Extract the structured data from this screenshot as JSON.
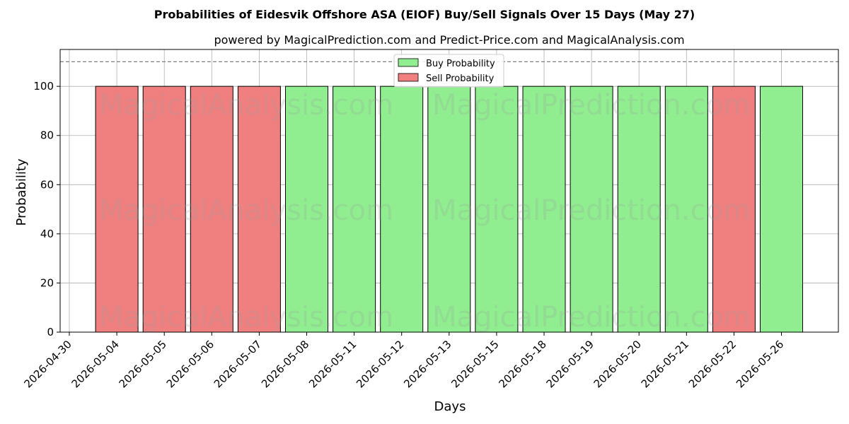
{
  "chart_data": {
    "type": "bar",
    "title": "Probabilities of Eidesvik Offshore ASA (EIOF) Buy/Sell Signals Over 15 Days (May 27)",
    "subtitle": "powered by MagicalPrediction.com and Predict-Price.com and MagicalAnalysis.com",
    "xlabel": "Days",
    "ylabel": "Probability",
    "ylim": [
      0,
      115
    ],
    "yticks": [
      0,
      20,
      40,
      60,
      80,
      100
    ],
    "reference_line": 110,
    "grid": true,
    "legend_position": "top-center",
    "x_tick_labels": [
      "2026-04-30",
      "2026-05-04",
      "2026-05-05",
      "2026-05-06",
      "2026-05-07",
      "2026-05-08",
      "2026-05-11",
      "2026-05-12",
      "2026-05-13",
      "2026-05-15",
      "2026-05-18",
      "2026-05-19",
      "2026-05-20",
      "2026-05-21",
      "2026-05-22",
      "2026-05-26"
    ],
    "bars": [
      {
        "date": "2026-05-04",
        "value": 100,
        "signal": "sell"
      },
      {
        "date": "2026-05-05",
        "value": 100,
        "signal": "sell"
      },
      {
        "date": "2026-05-06",
        "value": 100,
        "signal": "sell"
      },
      {
        "date": "2026-05-07",
        "value": 100,
        "signal": "sell"
      },
      {
        "date": "2026-05-08",
        "value": 100,
        "signal": "buy"
      },
      {
        "date": "2026-05-11",
        "value": 100,
        "signal": "buy"
      },
      {
        "date": "2026-05-12",
        "value": 100,
        "signal": "buy"
      },
      {
        "date": "2026-05-13",
        "value": 100,
        "signal": "buy"
      },
      {
        "date": "2026-05-15",
        "value": 100,
        "signal": "buy"
      },
      {
        "date": "2026-05-18",
        "value": 100,
        "signal": "buy"
      },
      {
        "date": "2026-05-19",
        "value": 100,
        "signal": "buy"
      },
      {
        "date": "2026-05-20",
        "value": 100,
        "signal": "buy"
      },
      {
        "date": "2026-05-21",
        "value": 100,
        "signal": "buy"
      },
      {
        "date": "2026-05-22",
        "value": 100,
        "signal": "sell"
      },
      {
        "date": "2026-05-26",
        "value": 100,
        "signal": "buy"
      }
    ],
    "series": [
      {
        "name": "Buy Probability",
        "key": "buy",
        "color": "#90ee90"
      },
      {
        "name": "Sell Probability",
        "key": "sell",
        "color": "#f08080"
      }
    ]
  },
  "watermarks": [
    "MagicalAnalysis.com",
    "MagicalPrediction.com"
  ]
}
